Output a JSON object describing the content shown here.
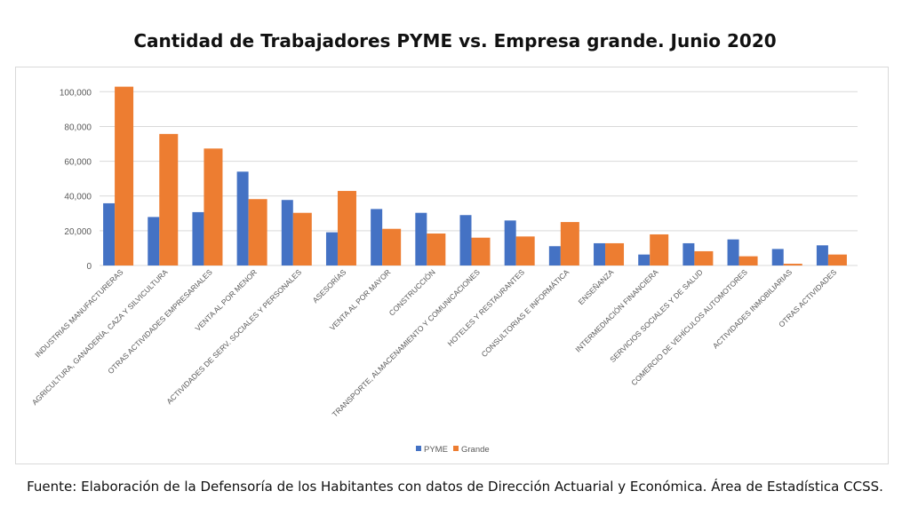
{
  "chart_data": {
    "type": "bar",
    "title": "Cantidad de Trabajadores PYME vs. Empresa grande. Junio 2020",
    "xlabel": "",
    "ylabel": "",
    "ylim": [
      0,
      100000
    ],
    "yticks": [
      "0",
      "20,000",
      "40,000",
      "60,000",
      "80,000",
      "100,000"
    ],
    "grid": true,
    "legend": "bottom",
    "categories": [
      "INDUSTRIAS MANUFACTURERAS",
      "AGRICULTURA, GANADERÍA, CAZA Y SILVICULTURA",
      "OTRAS ACTIVIDADES EMPRESARIALES",
      "VENTA AL POR MENOR",
      "ACTIVIDADES DE SERV. SOCIALES Y PERSONALES",
      "ASESORÍAS",
      "VENTA AL POR MAYOR",
      "CONSTRUCCIÓN",
      "TRANSPORTE, ALMACENAMIENTO Y COMUNICACIONES",
      "HOTELES Y RESTAURANTES",
      "CONSULTORIAS E INFORMÁTICA",
      "ENSEÑANZA",
      "INTERMEDIACIÓN FINANCIERA",
      "SERVICIOS SOCIALES Y DE SALUD",
      "COMERCIO DE VEHÍCULOS AUTOMOTORES",
      "ACTIVIDADES INMOBILIARIAS",
      "OTRAS ACTIVIDADES"
    ],
    "series": [
      {
        "name": "PYME",
        "color": "#4472c4",
        "values": [
          35800,
          27900,
          30700,
          54000,
          37700,
          19100,
          32500,
          30300,
          29000,
          25900,
          11100,
          12800,
          6300,
          12800,
          15000,
          9500,
          11600
        ]
      },
      {
        "name": "Grande",
        "color": "#ed7d31",
        "values": [
          102900,
          75700,
          67300,
          38200,
          30300,
          42900,
          21100,
          18400,
          16000,
          16700,
          25000,
          12800,
          17900,
          8200,
          5300,
          1000,
          6300
        ]
      }
    ]
  },
  "footer": "Fuente: Elaboración de la Defensoría de los Habitantes con datos de Dirección Actuarial y Económica. Área de Estadística CCSS."
}
